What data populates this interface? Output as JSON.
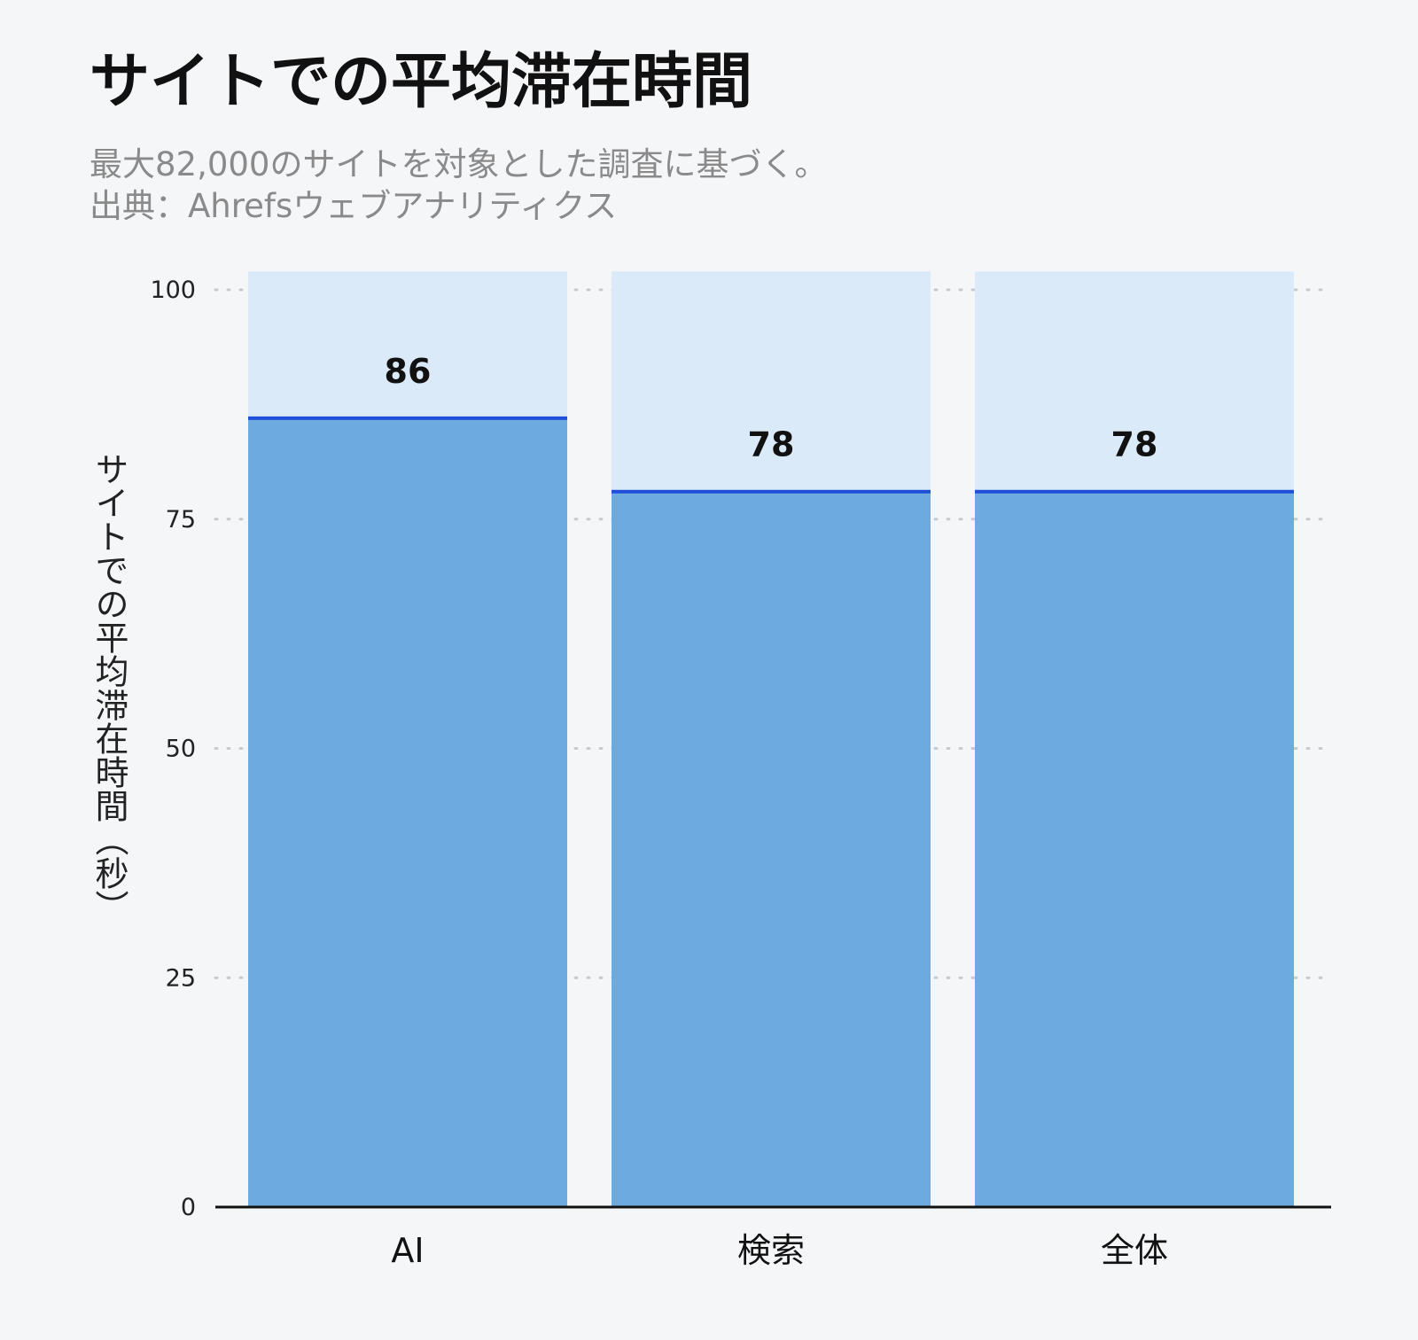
{
  "chart_data": {
    "type": "bar",
    "title": "サイトでの平均滞在時間",
    "subtitle": [
      "最大82,000のサイトを対象とした調査に基づく。",
      "出典：Ahrefsウェブアナリティクス"
    ],
    "ylabel": "サイトでの平均滞在時間（秒）",
    "xlabel": "",
    "categories": [
      "AI",
      "検索",
      "全体"
    ],
    "values": [
      86,
      78,
      78
    ],
    "ylim": [
      0,
      102
    ],
    "yticks": [
      0,
      25,
      50,
      75,
      100
    ],
    "grid": true,
    "colors": {
      "bar": "#6caae0",
      "bar_background": "#dbeaf8",
      "bar_top_line": "#1e4fd8",
      "grid": "#c8cacd",
      "axis": "#111111"
    }
  }
}
